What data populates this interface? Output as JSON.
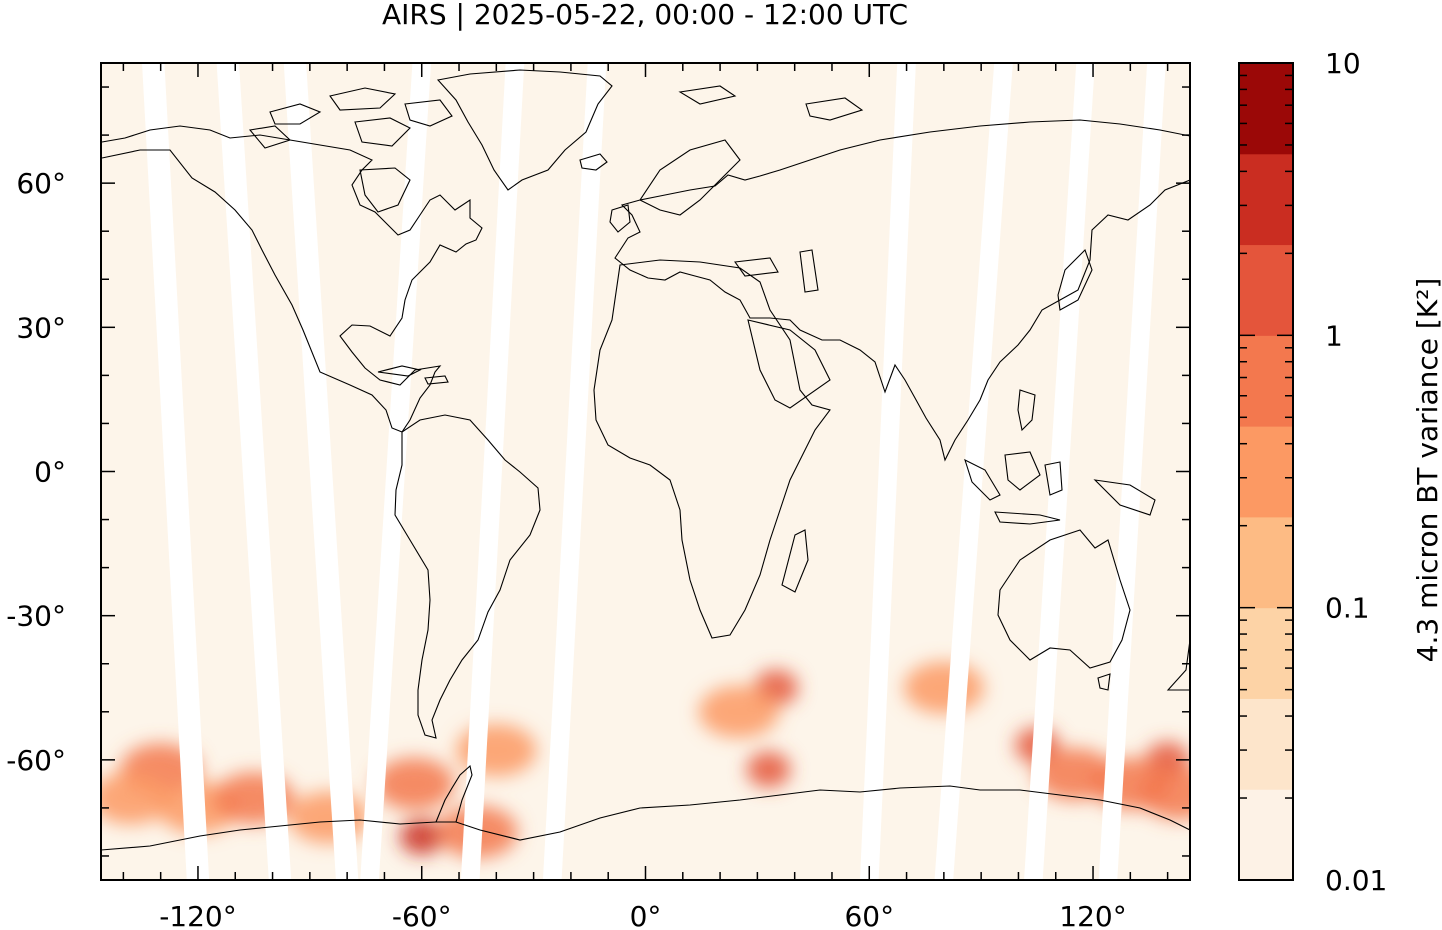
{
  "title": "AIRS | 2025-05-22, 00:00 - 12:00 UTC",
  "map": {
    "projection": "plate-carree",
    "lon_range": [
      -146,
      146
    ],
    "lat_range": [
      -85,
      85
    ],
    "x_ticks": [
      {
        "value": -120,
        "label": "-120°"
      },
      {
        "value": -60,
        "label": "-60°"
      },
      {
        "value": 0,
        "label": "0°"
      },
      {
        "value": 60,
        "label": "60°"
      },
      {
        "value": 120,
        "label": "120°"
      }
    ],
    "y_ticks": [
      {
        "value": 60,
        "label": "60°"
      },
      {
        "value": 30,
        "label": "30°"
      },
      {
        "value": 0,
        "label": "0°"
      },
      {
        "value": -30,
        "label": "-30°"
      },
      {
        "value": -60,
        "label": "-60°"
      }
    ],
    "background_color": "#fdf5ea",
    "gap_color": "#ffffff",
    "coastline_color": "#000000"
  },
  "colorbar": {
    "label": "4.3 micron BT variance [K²]",
    "scale": "log",
    "range": [
      0.01,
      10
    ],
    "tick_labels": [
      {
        "value": 10,
        "label": "10"
      },
      {
        "value": 1,
        "label": "1"
      },
      {
        "value": 0.1,
        "label": "0.1"
      },
      {
        "value": 0.01,
        "label": "0.01"
      }
    ],
    "colors_bottom_to_top": [
      "#fdf2e6",
      "#fde5cb",
      "#fdd3a6",
      "#fdbb84",
      "#fc9963",
      "#f3784e",
      "#e4553b",
      "#ca2d21",
      "#9b0807"
    ]
  },
  "swath_gaps": [
    {
      "top_lon": -132,
      "bottom_lon": -120,
      "width": 6
    },
    {
      "top_lon": -112,
      "bottom_lon": -98,
      "width": 6
    },
    {
      "top_lon": -94,
      "bottom_lon": -80,
      "width": 6
    },
    {
      "top_lon": -60,
      "bottom_lon": -74,
      "width": 5
    },
    {
      "top_lon": -35,
      "bottom_lon": -47,
      "width": 5
    },
    {
      "top_lon": -13,
      "bottom_lon": -25,
      "width": 5
    },
    {
      "top_lon": 70,
      "bottom_lon": 60,
      "width": 5
    },
    {
      "top_lon": 96,
      "bottom_lon": 80,
      "width": 5
    },
    {
      "top_lon": 118,
      "bottom_lon": 104,
      "width": 5
    },
    {
      "top_lon": 137,
      "bottom_lon": 124,
      "width": 5
    }
  ],
  "wave_hotspots": [
    {
      "lon": -130,
      "lat": -62,
      "value": 0.5
    },
    {
      "lon": -138,
      "lat": -68,
      "value": 0.4
    },
    {
      "lon": -120,
      "lat": -70,
      "value": 0.3
    },
    {
      "lon": -105,
      "lat": -68,
      "value": 0.5
    },
    {
      "lon": -85,
      "lat": -72,
      "value": 0.4
    },
    {
      "lon": -60,
      "lat": -76,
      "value": 3.0
    },
    {
      "lon": -62,
      "lat": -65,
      "value": 0.6
    },
    {
      "lon": -45,
      "lat": -75,
      "value": 0.5
    },
    {
      "lon": -40,
      "lat": -58,
      "value": 0.4
    },
    {
      "lon": 35,
      "lat": -45,
      "value": 1.2
    },
    {
      "lon": 33,
      "lat": -62,
      "value": 1.0
    },
    {
      "lon": 25,
      "lat": -50,
      "value": 0.3
    },
    {
      "lon": 80,
      "lat": -45,
      "value": 0.3
    },
    {
      "lon": 105,
      "lat": -57,
      "value": 1.0
    },
    {
      "lon": 115,
      "lat": -63,
      "value": 0.5
    },
    {
      "lon": 140,
      "lat": -60,
      "value": 1.3
    },
    {
      "lon": 130,
      "lat": -65,
      "value": 0.6
    },
    {
      "lon": 143,
      "lat": -67,
      "value": 0.6
    }
  ]
}
